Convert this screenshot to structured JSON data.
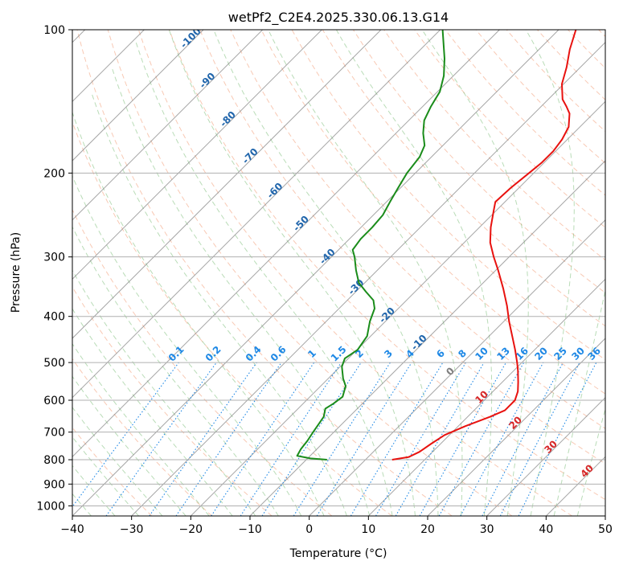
{
  "chart_data": {
    "type": "line",
    "title": "wetPf2_C2E4.2025.330.06.13.G14",
    "xlabel": "Temperature (°C)",
    "ylabel": "Pressure (hPa)",
    "xlim": [
      -40,
      50
    ],
    "ylim": [
      1050,
      100
    ],
    "y_scale": "log",
    "x_ticks": [
      "−40",
      "−30",
      "−20",
      "−10",
      "0",
      "10",
      "20",
      "30",
      "40",
      "50"
    ],
    "y_ticks": [
      "100",
      "200",
      "300",
      "400",
      "500",
      "600",
      "700",
      "800",
      "900",
      "1000"
    ],
    "grid": true,
    "colors": {
      "temperature": "#e8120f",
      "dewpoint": "#1a8c1a",
      "isotherm": "#808080",
      "dry_adiabat": "#f4a582",
      "moist_adiabat": "#7fbf7b",
      "mixing_ratio": "#1e88e5",
      "isotherm_label": "#2166ac",
      "dry_label": "#d62728",
      "zero_label": "#7f7f7f"
    },
    "series": [
      {
        "color": "temperature",
        "points": [
          {
            "p": 800,
            "t": 4.5
          },
          {
            "p": 790,
            "t": 6.8
          },
          {
            "p": 770,
            "t": 7.8
          },
          {
            "p": 740,
            "t": 8.4
          },
          {
            "p": 710,
            "t": 9.2
          },
          {
            "p": 680,
            "t": 11.2
          },
          {
            "p": 650,
            "t": 13.8
          },
          {
            "p": 630,
            "t": 15.2
          },
          {
            "p": 600,
            "t": 15.2
          },
          {
            "p": 575,
            "t": 14.2
          },
          {
            "p": 550,
            "t": 12.7
          },
          {
            "p": 520,
            "t": 10.7
          },
          {
            "p": 500,
            "t": 9.2
          },
          {
            "p": 470,
            "t": 6.7
          },
          {
            "p": 440,
            "t": 3.9
          },
          {
            "p": 410,
            "t": 0.9
          },
          {
            "p": 380,
            "t": -2.1
          },
          {
            "p": 350,
            "t": -5.6
          },
          {
            "p": 320,
            "t": -9.6
          },
          {
            "p": 300,
            "t": -12.6
          },
          {
            "p": 280,
            "t": -15.6
          },
          {
            "p": 260,
            "t": -18.1
          },
          {
            "p": 240,
            "t": -20.4
          },
          {
            "p": 230,
            "t": -21.6
          },
          {
            "p": 215,
            "t": -21.4
          },
          {
            "p": 200,
            "t": -20.8
          },
          {
            "p": 190,
            "t": -20.4
          },
          {
            "p": 180,
            "t": -20.4
          },
          {
            "p": 170,
            "t": -20.9
          },
          {
            "p": 160,
            "t": -21.9
          },
          {
            "p": 150,
            "t": -24.0
          },
          {
            "p": 145,
            "t": -25.7
          },
          {
            "p": 140,
            "t": -27.6
          },
          {
            "p": 130,
            "t": -30.3
          },
          {
            "p": 120,
            "t": -32.3
          },
          {
            "p": 110,
            "t": -34.8
          },
          {
            "p": 100,
            "t": -37.1
          }
        ]
      },
      {
        "color": "dewpoint",
        "points": [
          {
            "p": 800,
            "t": -6.5
          },
          {
            "p": 795,
            "t": -9.5
          },
          {
            "p": 785,
            "t": -12.2
          },
          {
            "p": 760,
            "t": -12.7
          },
          {
            "p": 730,
            "t": -13.0
          },
          {
            "p": 700,
            "t": -13.5
          },
          {
            "p": 675,
            "t": -13.9
          },
          {
            "p": 650,
            "t": -14.3
          },
          {
            "p": 625,
            "t": -15.4
          },
          {
            "p": 610,
            "t": -14.9
          },
          {
            "p": 590,
            "t": -14.5
          },
          {
            "p": 560,
            "t": -15.8
          },
          {
            "p": 540,
            "t": -17.5
          },
          {
            "p": 510,
            "t": -19.7
          },
          {
            "p": 490,
            "t": -20.6
          },
          {
            "p": 470,
            "t": -19.9
          },
          {
            "p": 440,
            "t": -20.6
          },
          {
            "p": 410,
            "t": -22.6
          },
          {
            "p": 385,
            "t": -24.0
          },
          {
            "p": 370,
            "t": -25.6
          },
          {
            "p": 355,
            "t": -28.3
          },
          {
            "p": 340,
            "t": -31.0
          },
          {
            "p": 320,
            "t": -33.6
          },
          {
            "p": 300,
            "t": -36.1
          },
          {
            "p": 290,
            "t": -37.6
          },
          {
            "p": 275,
            "t": -38.1
          },
          {
            "p": 260,
            "t": -38.1
          },
          {
            "p": 245,
            "t": -38.4
          },
          {
            "p": 230,
            "t": -39.4
          },
          {
            "p": 215,
            "t": -40.4
          },
          {
            "p": 200,
            "t": -41.4
          },
          {
            "p": 185,
            "t": -42.0
          },
          {
            "p": 175,
            "t": -43.1
          },
          {
            "p": 165,
            "t": -45.4
          },
          {
            "p": 155,
            "t": -47.4
          },
          {
            "p": 145,
            "t": -48.6
          },
          {
            "p": 135,
            "t": -49.6
          },
          {
            "p": 125,
            "t": -51.6
          },
          {
            "p": 115,
            "t": -54.4
          },
          {
            "p": 100,
            "t": -59.6
          }
        ]
      }
    ],
    "isotherm_labels": [
      "-100",
      "-90",
      "-80",
      "-70",
      "-60",
      "-50",
      "-40",
      "-30",
      "-20",
      "-10"
    ],
    "mixing_ratio_labels": [
      "0.1",
      "0.2",
      "0.4",
      "0.6",
      "1",
      "1.5",
      "2",
      "3",
      "4",
      "6",
      "8",
      "10",
      "13",
      "16",
      "20",
      "25",
      "30",
      "36"
    ],
    "zero_label": "0",
    "dry_adiabat_labels": [
      "10",
      "20",
      "30",
      "40"
    ]
  }
}
